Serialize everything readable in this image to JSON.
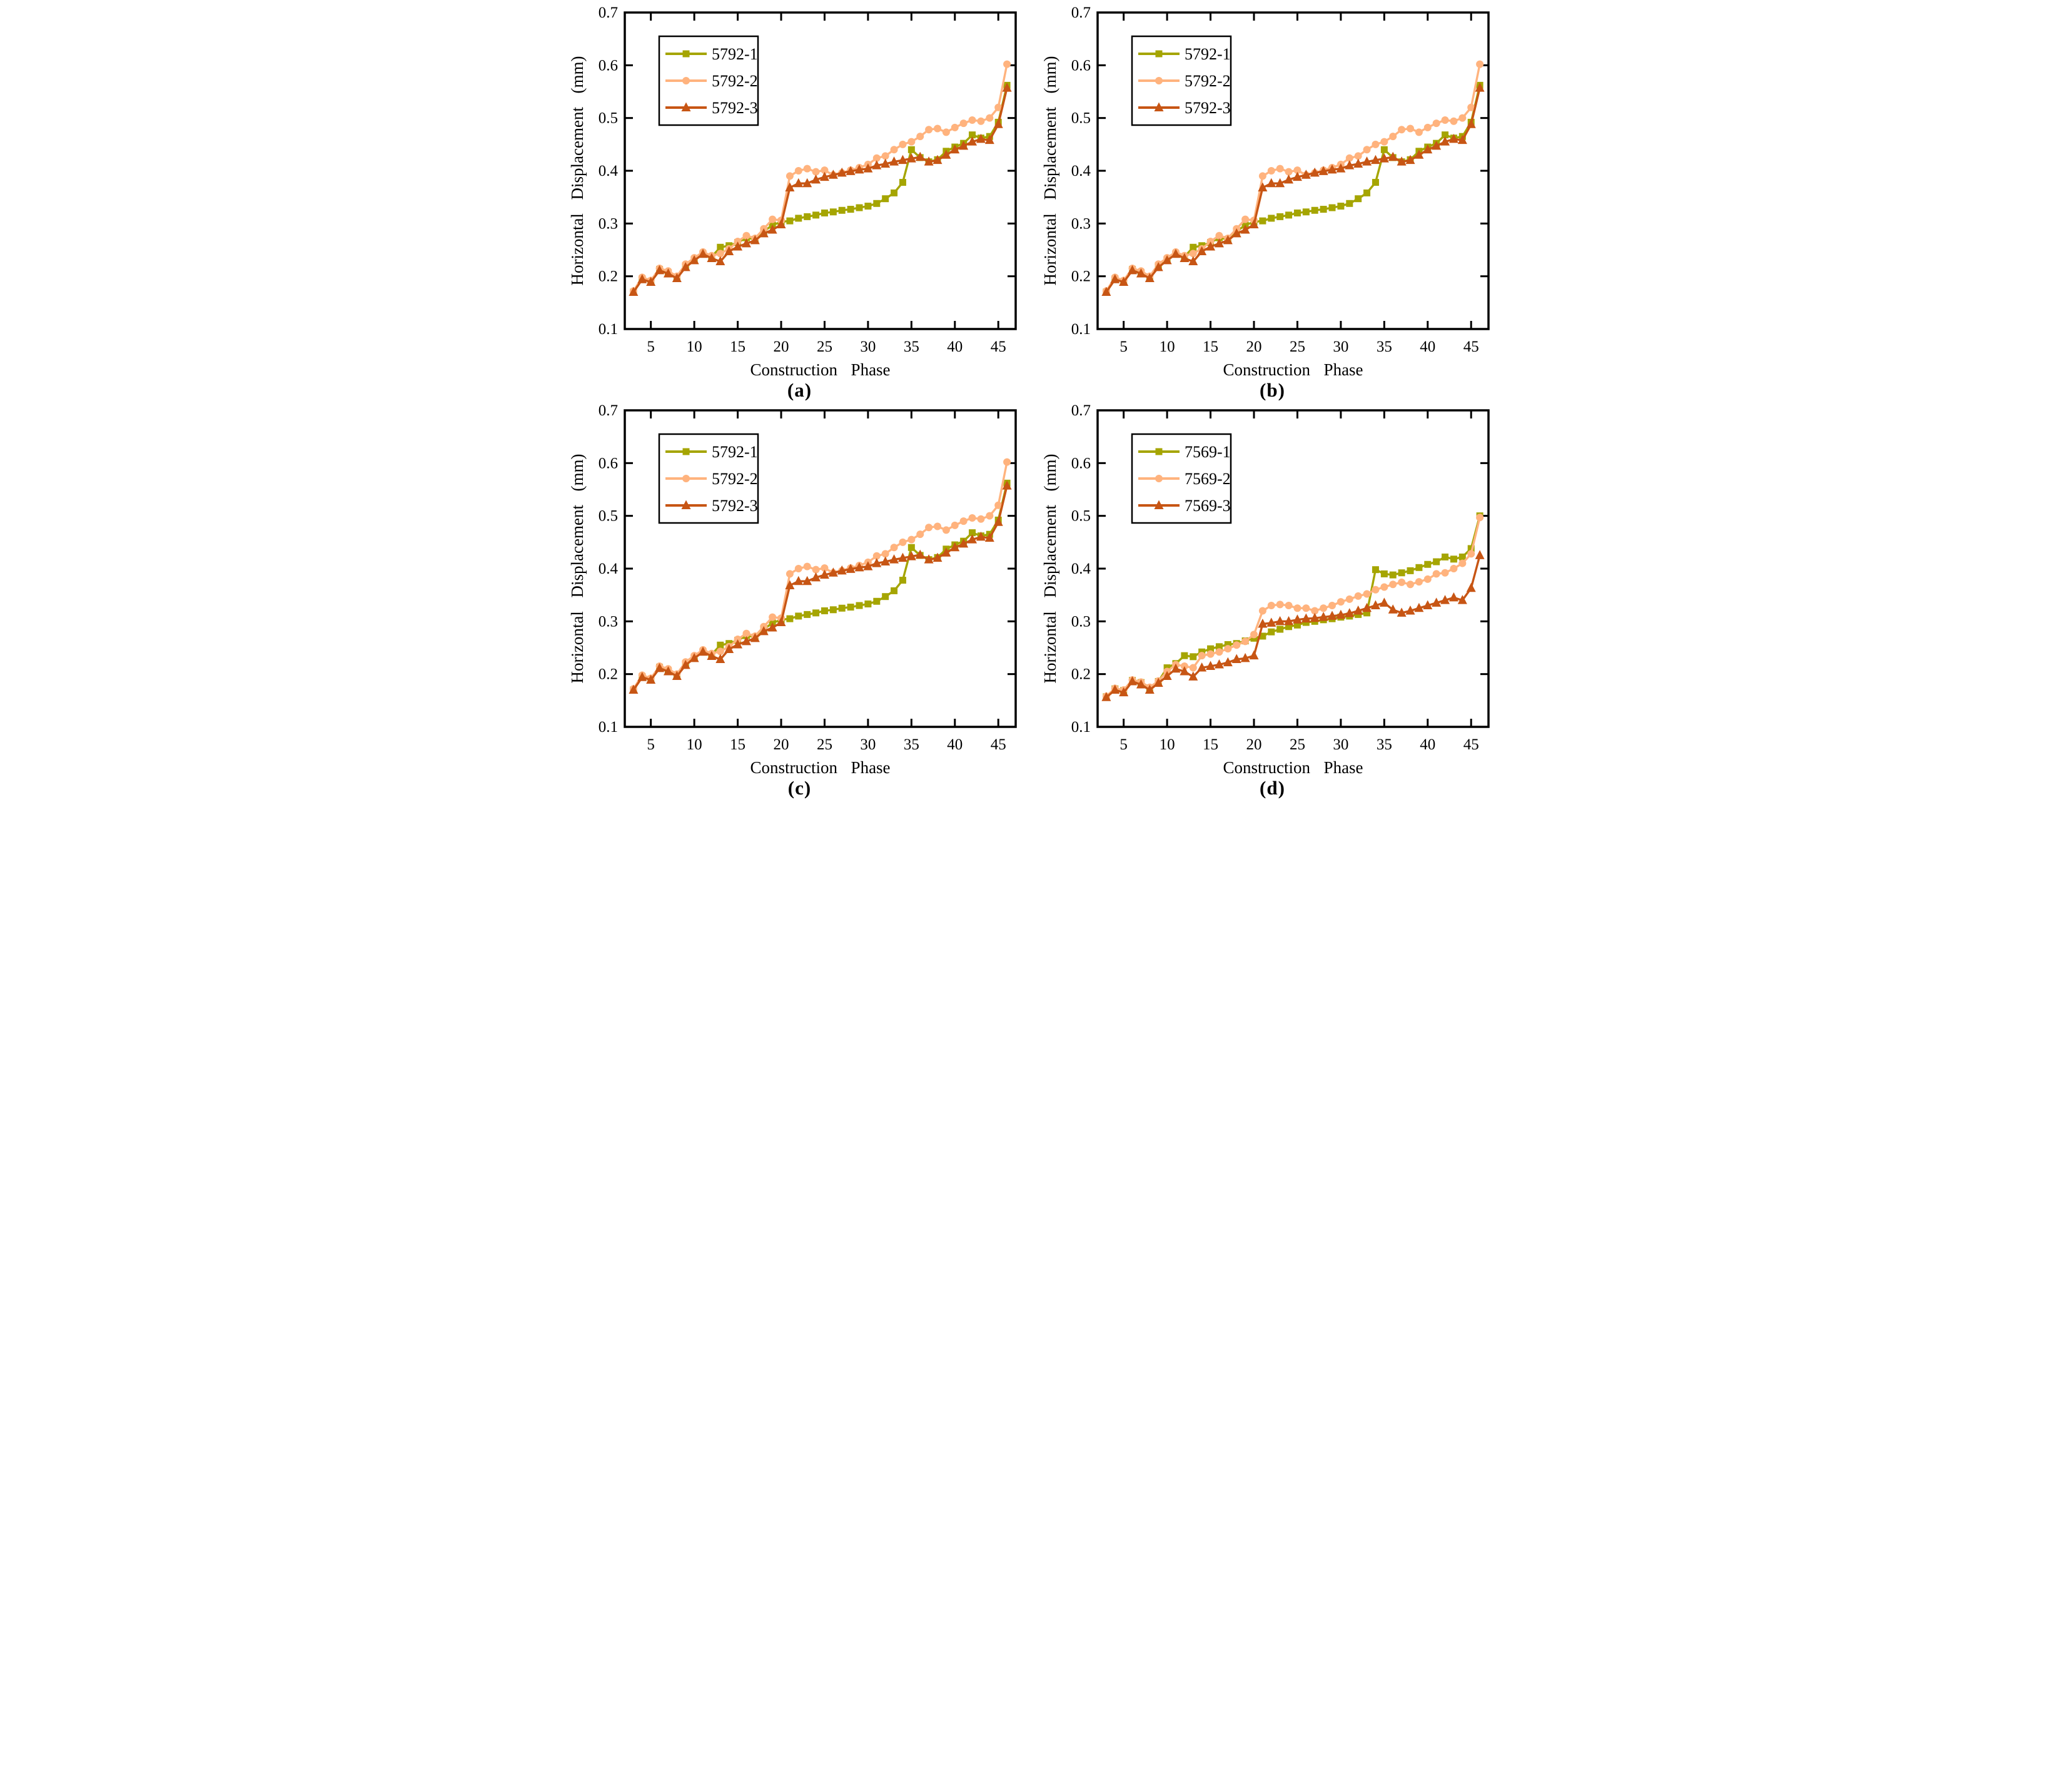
{
  "figure": {
    "background": "#ffffff",
    "axis_color": "#000000",
    "axes": {
      "xlabel": "Construction Phase",
      "ylabel": "Horizontal Displacement (mm)",
      "xlim": [
        2,
        47
      ],
      "ylim": [
        0.1,
        0.7
      ],
      "xticks": [
        5,
        10,
        15,
        20,
        25,
        30,
        35,
        40,
        45
      ],
      "yticks": [
        "0.1",
        "0.2",
        "0.3",
        "0.4",
        "0.5",
        "0.6",
        "0.7"
      ],
      "grid": "off",
      "tick_direction": "in",
      "box": "on"
    },
    "legend_position": "upper-left"
  },
  "colors": {
    "series1": "#A5A502",
    "series2": "#FFB37E",
    "series3": "#C75514"
  },
  "chart_data": [
    {
      "id": "a",
      "caption": "(a)",
      "type": "line",
      "x": [
        3,
        4,
        5,
        6,
        7,
        8,
        9,
        10,
        11,
        12,
        13,
        14,
        15,
        16,
        17,
        18,
        19,
        20,
        21,
        22,
        23,
        24,
        25,
        26,
        27,
        28,
        29,
        30,
        31,
        32,
        33,
        34,
        35,
        36,
        37,
        38,
        39,
        40,
        41,
        42,
        43,
        44,
        45,
        46
      ],
      "legend": [
        "5792-1",
        "5792-2",
        "5792-3"
      ],
      "series": [
        {
          "name": "5792-1",
          "marker": "square",
          "color": "#A5A502",
          "values": [
            0.17,
            0.195,
            0.19,
            0.213,
            0.207,
            0.196,
            0.22,
            0.232,
            0.243,
            0.237,
            0.255,
            0.258,
            0.264,
            0.273,
            0.27,
            0.285,
            0.297,
            0.303,
            0.305,
            0.31,
            0.313,
            0.316,
            0.32,
            0.322,
            0.325,
            0.327,
            0.33,
            0.333,
            0.338,
            0.347,
            0.358,
            0.378,
            0.44,
            0.425,
            0.417,
            0.421,
            0.437,
            0.445,
            0.452,
            0.468,
            0.462,
            0.465,
            0.492,
            0.562
          ]
        },
        {
          "name": "5792-2",
          "marker": "circle",
          "color": "#FFB37E",
          "values": [
            0.172,
            0.198,
            0.192,
            0.215,
            0.21,
            0.2,
            0.223,
            0.235,
            0.246,
            0.239,
            0.243,
            0.252,
            0.266,
            0.277,
            0.272,
            0.29,
            0.308,
            0.306,
            0.39,
            0.4,
            0.404,
            0.398,
            0.401,
            0.392,
            0.396,
            0.401,
            0.406,
            0.412,
            0.424,
            0.428,
            0.44,
            0.45,
            0.455,
            0.465,
            0.478,
            0.48,
            0.473,
            0.482,
            0.49,
            0.496,
            0.494,
            0.5,
            0.52,
            0.602
          ]
        },
        {
          "name": "5792-3",
          "marker": "triangle",
          "color": "#C75514",
          "values": [
            0.17,
            0.194,
            0.189,
            0.211,
            0.205,
            0.196,
            0.217,
            0.23,
            0.242,
            0.234,
            0.228,
            0.247,
            0.256,
            0.262,
            0.268,
            0.281,
            0.288,
            0.298,
            0.368,
            0.376,
            0.376,
            0.383,
            0.388,
            0.392,
            0.396,
            0.399,
            0.402,
            0.404,
            0.41,
            0.413,
            0.417,
            0.42,
            0.423,
            0.426,
            0.417,
            0.42,
            0.43,
            0.44,
            0.447,
            0.455,
            0.46,
            0.458,
            0.488,
            0.557
          ]
        }
      ]
    },
    {
      "id": "b",
      "caption": "(b)",
      "type": "line",
      "x": [
        3,
        4,
        5,
        6,
        7,
        8,
        9,
        10,
        11,
        12,
        13,
        14,
        15,
        16,
        17,
        18,
        19,
        20,
        21,
        22,
        23,
        24,
        25,
        26,
        27,
        28,
        29,
        30,
        31,
        32,
        33,
        34,
        35,
        36,
        37,
        38,
        39,
        40,
        41,
        42,
        43,
        44,
        45,
        46
      ],
      "legend": [
        "5792-1",
        "5792-2",
        "5792-3"
      ],
      "series": [
        {
          "name": "5792-1",
          "marker": "square",
          "color": "#A5A502",
          "values": [
            0.17,
            0.195,
            0.19,
            0.213,
            0.207,
            0.196,
            0.22,
            0.232,
            0.243,
            0.237,
            0.255,
            0.258,
            0.264,
            0.273,
            0.27,
            0.285,
            0.297,
            0.303,
            0.305,
            0.31,
            0.313,
            0.316,
            0.32,
            0.322,
            0.325,
            0.327,
            0.33,
            0.333,
            0.338,
            0.347,
            0.358,
            0.378,
            0.44,
            0.425,
            0.417,
            0.421,
            0.437,
            0.445,
            0.452,
            0.468,
            0.462,
            0.465,
            0.492,
            0.562
          ]
        },
        {
          "name": "5792-2",
          "marker": "circle",
          "color": "#FFB37E",
          "values": [
            0.172,
            0.198,
            0.192,
            0.215,
            0.21,
            0.2,
            0.223,
            0.235,
            0.246,
            0.239,
            0.243,
            0.252,
            0.266,
            0.277,
            0.272,
            0.29,
            0.308,
            0.306,
            0.39,
            0.4,
            0.404,
            0.398,
            0.401,
            0.392,
            0.396,
            0.401,
            0.406,
            0.412,
            0.424,
            0.428,
            0.44,
            0.45,
            0.455,
            0.465,
            0.478,
            0.48,
            0.473,
            0.482,
            0.49,
            0.496,
            0.494,
            0.5,
            0.52,
            0.602
          ]
        },
        {
          "name": "5792-3",
          "marker": "triangle",
          "color": "#C75514",
          "values": [
            0.17,
            0.194,
            0.189,
            0.211,
            0.205,
            0.196,
            0.217,
            0.23,
            0.242,
            0.234,
            0.228,
            0.247,
            0.256,
            0.262,
            0.268,
            0.281,
            0.288,
            0.298,
            0.368,
            0.376,
            0.376,
            0.383,
            0.388,
            0.392,
            0.396,
            0.399,
            0.402,
            0.404,
            0.41,
            0.413,
            0.417,
            0.42,
            0.423,
            0.426,
            0.417,
            0.42,
            0.43,
            0.44,
            0.447,
            0.455,
            0.46,
            0.458,
            0.488,
            0.557
          ]
        }
      ]
    },
    {
      "id": "c",
      "caption": "(c)",
      "type": "line",
      "x": [
        3,
        4,
        5,
        6,
        7,
        8,
        9,
        10,
        11,
        12,
        13,
        14,
        15,
        16,
        17,
        18,
        19,
        20,
        21,
        22,
        23,
        24,
        25,
        26,
        27,
        28,
        29,
        30,
        31,
        32,
        33,
        34,
        35,
        36,
        37,
        38,
        39,
        40,
        41,
        42,
        43,
        44,
        45,
        46
      ],
      "legend": [
        "5792-1",
        "5792-2",
        "5792-3"
      ],
      "series": [
        {
          "name": "5792-1",
          "marker": "square",
          "color": "#A5A502",
          "values": [
            0.17,
            0.195,
            0.19,
            0.213,
            0.207,
            0.196,
            0.22,
            0.232,
            0.243,
            0.237,
            0.255,
            0.258,
            0.264,
            0.273,
            0.27,
            0.285,
            0.297,
            0.303,
            0.305,
            0.31,
            0.313,
            0.316,
            0.32,
            0.322,
            0.325,
            0.327,
            0.33,
            0.333,
            0.338,
            0.347,
            0.358,
            0.378,
            0.44,
            0.425,
            0.417,
            0.421,
            0.437,
            0.445,
            0.452,
            0.468,
            0.462,
            0.465,
            0.492,
            0.562
          ]
        },
        {
          "name": "5792-2",
          "marker": "circle",
          "color": "#FFB37E",
          "values": [
            0.172,
            0.198,
            0.192,
            0.215,
            0.21,
            0.2,
            0.223,
            0.235,
            0.246,
            0.239,
            0.243,
            0.252,
            0.266,
            0.277,
            0.272,
            0.29,
            0.308,
            0.306,
            0.39,
            0.4,
            0.404,
            0.398,
            0.401,
            0.392,
            0.396,
            0.401,
            0.406,
            0.412,
            0.424,
            0.428,
            0.44,
            0.45,
            0.455,
            0.465,
            0.478,
            0.48,
            0.473,
            0.482,
            0.49,
            0.496,
            0.494,
            0.5,
            0.52,
            0.602
          ]
        },
        {
          "name": "5792-3",
          "marker": "triangle",
          "color": "#C75514",
          "values": [
            0.17,
            0.194,
            0.189,
            0.211,
            0.205,
            0.196,
            0.217,
            0.23,
            0.242,
            0.234,
            0.228,
            0.247,
            0.256,
            0.262,
            0.268,
            0.281,
            0.288,
            0.298,
            0.368,
            0.376,
            0.376,
            0.383,
            0.388,
            0.392,
            0.396,
            0.399,
            0.402,
            0.404,
            0.41,
            0.413,
            0.417,
            0.42,
            0.423,
            0.426,
            0.417,
            0.42,
            0.43,
            0.44,
            0.447,
            0.455,
            0.46,
            0.458,
            0.488,
            0.557
          ]
        }
      ]
    },
    {
      "id": "d",
      "caption": "(d)",
      "type": "line",
      "x": [
        3,
        4,
        5,
        6,
        7,
        8,
        9,
        10,
        11,
        12,
        13,
        14,
        15,
        16,
        17,
        18,
        19,
        20,
        21,
        22,
        23,
        24,
        25,
        26,
        27,
        28,
        29,
        30,
        31,
        32,
        33,
        34,
        35,
        36,
        37,
        38,
        39,
        40,
        41,
        42,
        43,
        44,
        45,
        46
      ],
      "legend": [
        "7569-1",
        "7569-2",
        "7569-3"
      ],
      "series": [
        {
          "name": "7569-1",
          "marker": "square",
          "color": "#A5A502",
          "values": [
            0.157,
            0.172,
            0.169,
            0.188,
            0.184,
            0.174,
            0.186,
            0.212,
            0.22,
            0.235,
            0.233,
            0.242,
            0.248,
            0.252,
            0.256,
            0.258,
            0.263,
            0.268,
            0.272,
            0.28,
            0.285,
            0.29,
            0.293,
            0.298,
            0.3,
            0.303,
            0.305,
            0.308,
            0.31,
            0.313,
            0.316,
            0.398,
            0.39,
            0.388,
            0.392,
            0.396,
            0.402,
            0.408,
            0.413,
            0.422,
            0.418,
            0.422,
            0.438,
            0.5
          ]
        },
        {
          "name": "7569-2",
          "marker": "circle",
          "color": "#FFB37E",
          "values": [
            0.158,
            0.173,
            0.17,
            0.189,
            0.185,
            0.175,
            0.187,
            0.205,
            0.218,
            0.215,
            0.212,
            0.235,
            0.238,
            0.242,
            0.248,
            0.255,
            0.262,
            0.275,
            0.32,
            0.33,
            0.332,
            0.33,
            0.325,
            0.325,
            0.32,
            0.325,
            0.33,
            0.337,
            0.342,
            0.348,
            0.352,
            0.36,
            0.365,
            0.37,
            0.374,
            0.37,
            0.375,
            0.38,
            0.39,
            0.392,
            0.4,
            0.41,
            0.428,
            0.497
          ]
        },
        {
          "name": "7569-3",
          "marker": "triangle",
          "color": "#C75514",
          "values": [
            0.156,
            0.17,
            0.165,
            0.186,
            0.18,
            0.17,
            0.183,
            0.196,
            0.21,
            0.205,
            0.195,
            0.212,
            0.215,
            0.218,
            0.222,
            0.228,
            0.23,
            0.235,
            0.295,
            0.297,
            0.3,
            0.3,
            0.303,
            0.305,
            0.306,
            0.308,
            0.31,
            0.312,
            0.315,
            0.32,
            0.325,
            0.33,
            0.335,
            0.322,
            0.316,
            0.32,
            0.325,
            0.33,
            0.335,
            0.34,
            0.345,
            0.34,
            0.363,
            0.425
          ]
        }
      ]
    }
  ]
}
